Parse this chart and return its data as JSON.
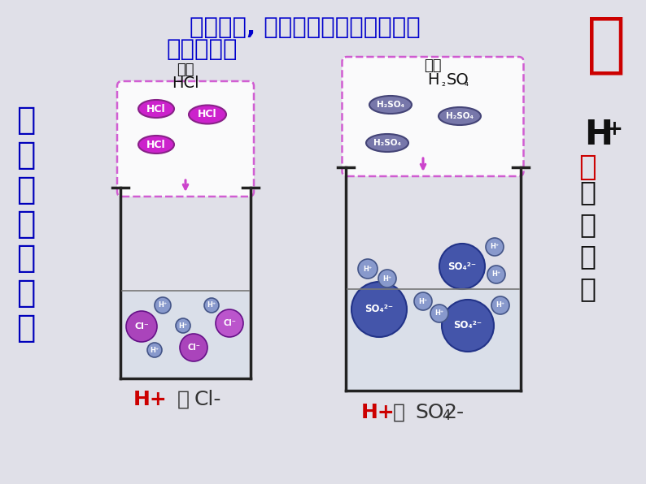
{
  "bg_color": "#e0e0e8",
  "title_line1": "通过观察, 找出不同的酸溶液中共同",
  "title_line2": "含有的微粒",
  "title_color": "#0000cc",
  "title_fontsize": 21,
  "left_label1": "盐酸",
  "left_label2": "HCl",
  "right_label1": "硫酸",
  "right_label2": "H₂SO₄",
  "label_color": "#111111",
  "side_text": "微\n观\n世\n界\n很\n精\n彩",
  "side_color": "#0000bb",
  "acid_char": "酸",
  "acid_color": "#cc0000",
  "he_text": "和",
  "acid_root_text": "酸\n根\n离\n子",
  "beaker_color": "#222222",
  "hcl_color": "#cc22cc",
  "hcl_edge": "#882288",
  "h2so4_color": "#7777aa",
  "h2so4_edge": "#444477",
  "cl_color": "#aa44bb",
  "cl_edge": "#661188",
  "hplus_color": "#8899cc",
  "hplus_edge": "#445588",
  "so4_color": "#4455aa",
  "so4_edge": "#223388",
  "water_color": "#ccddee",
  "dbox_color": "#cc44cc"
}
